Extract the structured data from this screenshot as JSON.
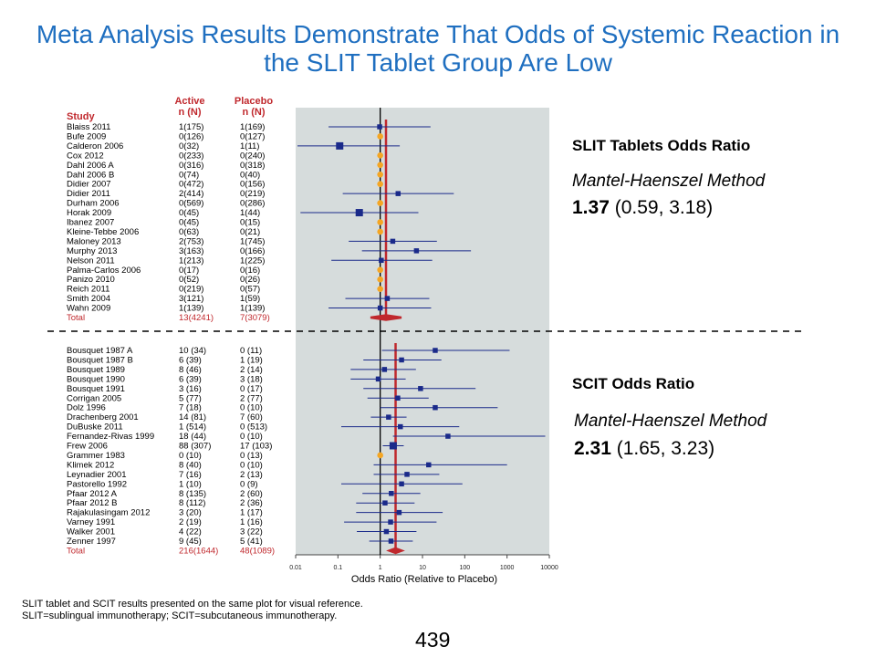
{
  "title": "Meta Analysis Results Demonstrate That Odds of Systemic Reaction in the SLIT Tablet Group Are Low",
  "headers": {
    "study": "Study",
    "active": "Active\nn (N)",
    "placebo": "Placebo\nn (N)"
  },
  "slit_box": {
    "heading": "SLIT Tablets Odds Ratio",
    "method": "Mantel-Haenszel  Method",
    "or": "1.37",
    "ci": "(0.59, 3.18)"
  },
  "scit_box": {
    "heading": "SCIT Odds Ratio",
    "method": "Mantel-Haenszel  Method",
    "or": "2.31",
    "ci": "(1.65, 3.23)"
  },
  "footnote_1": "SLIT tablet and SCIT results presented on the same plot for visual reference.",
  "footnote_2": "SLIT=sublingual immunotherapy; SCIT=subcutaneous immunotherapy.",
  "page_number": "439",
  "colors": {
    "title": "#1f6fc0",
    "header_red": "#c0282d",
    "marker_blue": "#1a2a8a",
    "marker_orange": "#f5a623",
    "pooled_red": "#c0282d",
    "plot_bg": "#d6dcdc"
  },
  "chart_data": {
    "type": "forest",
    "xlabel": "Odds Ratio (Relative to Placebo)",
    "xscale": "log",
    "xticks": [
      "0.01",
      "0.1",
      "1",
      "10",
      "100",
      "1000",
      "10000"
    ],
    "xtick_values": [
      0.01,
      0.1,
      1,
      10,
      100,
      1000,
      10000
    ],
    "reference_line": 1,
    "groups": [
      {
        "name": "SLIT Tablets",
        "pooled_or": 1.37,
        "pooled_ci": [
          0.59,
          3.18
        ],
        "studies": [
          {
            "study": "Blaiss 2011",
            "active": "1(175)",
            "placebo": "1(169)",
            "or": 0.97,
            "lo": 0.06,
            "hi": 15.5,
            "marker": "square"
          },
          {
            "study": "Bufe 2009",
            "active": "0(126)",
            "placebo": "0(127)",
            "or": 1,
            "marker": "dot"
          },
          {
            "study": "Calderon 2006",
            "active": "0(32)",
            "placebo": "1(11)",
            "or": 0.11,
            "lo": 0.004,
            "hi": 2.9,
            "marker": "square"
          },
          {
            "study": "Cox 2012",
            "active": "0(233)",
            "placebo": "0(240)",
            "or": 1,
            "marker": "dot"
          },
          {
            "study": "Dahl 2006 A",
            "active": "0(316)",
            "placebo": "0(318)",
            "or": 1,
            "marker": "dot"
          },
          {
            "study": "Dahl 2006 B",
            "active": "0(74)",
            "placebo": "0(40)",
            "or": 1,
            "marker": "dot"
          },
          {
            "study": "Didier 2007",
            "active": "0(472)",
            "placebo": "0(156)",
            "or": 1,
            "marker": "dot"
          },
          {
            "study": "Didier 2011",
            "active": "2(414)",
            "placebo": "0(219)",
            "or": 2.65,
            "lo": 0.13,
            "hi": 55,
            "marker": "square"
          },
          {
            "study": "Durham 2006",
            "active": "0(569)",
            "placebo": "0(286)",
            "or": 1,
            "marker": "dot"
          },
          {
            "study": "Horak 2009",
            "active": "0(45)",
            "placebo": "1(44)",
            "or": 0.32,
            "lo": 0.013,
            "hi": 8,
            "marker": "square"
          },
          {
            "study": "Ibanez 2007",
            "active": "0(45)",
            "placebo": "0(15)",
            "or": 1,
            "marker": "dot"
          },
          {
            "study": "Kleine-Tebbe 2006",
            "active": "0(63)",
            "placebo": "0(21)",
            "or": 1,
            "marker": "dot"
          },
          {
            "study": "Maloney 2013",
            "active": "2(753)",
            "placebo": "1(745)",
            "or": 1.98,
            "lo": 0.18,
            "hi": 21.9,
            "marker": "square"
          },
          {
            "study": "Murphy 2013",
            "active": "3(163)",
            "placebo": "0(166)",
            "or": 7.2,
            "lo": 0.37,
            "hi": 140,
            "marker": "square"
          },
          {
            "study": "Nelson 2011",
            "active": "1(213)",
            "placebo": "1(225)",
            "or": 1.06,
            "lo": 0.07,
            "hi": 17,
            "marker": "square"
          },
          {
            "study": "Palma-Carlos 2006",
            "active": "0(17)",
            "placebo": "0(16)",
            "or": 1,
            "marker": "dot"
          },
          {
            "study": "Panizo 2010",
            "active": "0(52)",
            "placebo": "0(26)",
            "or": 1,
            "marker": "dot"
          },
          {
            "study": "Reich 2011",
            "active": "0(219)",
            "placebo": "0(57)",
            "or": 1,
            "marker": "dot"
          },
          {
            "study": "Smith 2004",
            "active": "3(121)",
            "placebo": "1(59)",
            "or": 1.47,
            "lo": 0.15,
            "hi": 14.5,
            "marker": "square"
          },
          {
            "study": "Wahn 2009",
            "active": "1(139)",
            "placebo": "1(139)",
            "or": 1,
            "lo": 0.06,
            "hi": 16,
            "marker": "square"
          },
          {
            "study": "Total",
            "active": "13(4241)",
            "placebo": "7(3079)",
            "or": 1.37,
            "lo": 0.59,
            "hi": 3.18,
            "marker": "diamond",
            "total": true
          }
        ]
      },
      {
        "name": "SCIT",
        "pooled_or": 2.31,
        "pooled_ci": [
          1.65,
          3.23
        ],
        "studies": [
          {
            "study": "Bousquet 1987 A",
            "active": "10  (34)",
            "placebo": "0  (11)",
            "or": 20,
            "lo": 1.1,
            "hi": 1150,
            "marker": "square"
          },
          {
            "study": "Bousquet 1987 B",
            "active": "6  (39)",
            "placebo": "1  (19)",
            "or": 3.2,
            "lo": 0.4,
            "hi": 28,
            "marker": "square"
          },
          {
            "study": "Bousquet 1989",
            "active": "8  (46)",
            "placebo": "2  (14)",
            "or": 1.26,
            "lo": 0.2,
            "hi": 7,
            "marker": "square"
          },
          {
            "study": "Bousquet 1990",
            "active": "6  (39)",
            "placebo": "3  (18)",
            "or": 0.9,
            "lo": 0.2,
            "hi": 4,
            "marker": "square"
          },
          {
            "study": "Bousquet 1991",
            "active": "3  (16)",
            "placebo": "0  (17)",
            "or": 9,
            "lo": 0.4,
            "hi": 180,
            "marker": "square"
          },
          {
            "study": "Corrigan 2005",
            "active": "5  (77)",
            "placebo": "2  (77)",
            "or": 2.6,
            "lo": 0.5,
            "hi": 14,
            "marker": "square"
          },
          {
            "study": "Dolz 1996",
            "active": "7  (18)",
            "placebo": "0  (10)",
            "or": 20,
            "lo": 1,
            "hi": 600,
            "marker": "square"
          },
          {
            "study": "Drachenberg 2001",
            "active": "14  (81)",
            "placebo": "7  (60)",
            "or": 1.58,
            "lo": 0.6,
            "hi": 4.2,
            "marker": "square"
          },
          {
            "study": "DuBuske 2011",
            "active": "1  (514)",
            "placebo": "0  (513)",
            "or": 3,
            "lo": 0.12,
            "hi": 74,
            "marker": "square"
          },
          {
            "study": "Fernandez-Rivas 1999",
            "active": "18  (44)",
            "placebo": "0  (10)",
            "or": 40,
            "lo": 2,
            "hi": 8000,
            "marker": "square"
          },
          {
            "study": "Frew 2006",
            "active": "88  (307)",
            "placebo": "17  (103)",
            "or": 2.03,
            "lo": 1.15,
            "hi": 3.6,
            "marker": "square"
          },
          {
            "study": "Grammer 1983",
            "active": "0  (10)",
            "placebo": "0  (13)",
            "or": 1,
            "marker": "dot"
          },
          {
            "study": "Klimek 2012",
            "active": "8  (40)",
            "placebo": "0  (10)",
            "or": 14,
            "lo": 0.7,
            "hi": 1000,
            "marker": "square"
          },
          {
            "study": "Leynadier 2001",
            "active": "7  (16)",
            "placebo": "2  (13)",
            "or": 4.3,
            "lo": 0.7,
            "hi": 25,
            "marker": "square"
          },
          {
            "study": "Pastorello 1992",
            "active": "1  (10)",
            "placebo": "0  (9)",
            "or": 3.2,
            "lo": 0.12,
            "hi": 88,
            "marker": "square"
          },
          {
            "study": "Pfaar 2012 A",
            "active": "8  (135)",
            "placebo": "2  (60)",
            "or": 1.83,
            "lo": 0.38,
            "hi": 8.9,
            "marker": "square"
          },
          {
            "study": "Pfaar 2012 B",
            "active": "8  (112)",
            "placebo": "2  (36)",
            "or": 1.3,
            "lo": 0.27,
            "hi": 6.5,
            "marker": "square"
          },
          {
            "study": "Rajakulasingam 2012",
            "active": "3  (20)",
            "placebo": "1  (17)",
            "or": 2.8,
            "lo": 0.27,
            "hi": 30,
            "marker": "square"
          },
          {
            "study": "Varney 1991",
            "active": "2  (19)",
            "placebo": "1  (16)",
            "or": 1.76,
            "lo": 0.14,
            "hi": 21.5,
            "marker": "square"
          },
          {
            "study": "Walker 2001",
            "active": "4  (22)",
            "placebo": "3  (22)",
            "or": 1.4,
            "lo": 0.28,
            "hi": 7.2,
            "marker": "square"
          },
          {
            "study": "Zenner 1997",
            "active": "9  (45)",
            "placebo": "5  (41)",
            "or": 1.8,
            "lo": 0.55,
            "hi": 5.9,
            "marker": "square"
          },
          {
            "study": "Total",
            "active": "216(1644)",
            "placebo": "48(1089)",
            "or": 2.31,
            "lo": 1.65,
            "hi": 3.23,
            "marker": "diamond",
            "total": true
          }
        ]
      }
    ]
  }
}
